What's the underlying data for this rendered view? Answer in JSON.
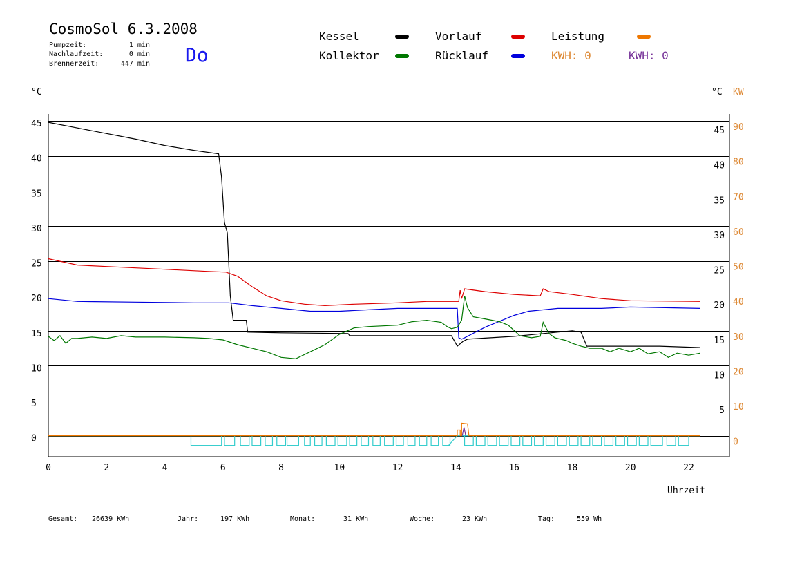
{
  "header": {
    "title": "CosmoSol 6.3.2008",
    "weekday": "Do",
    "stats": [
      {
        "label": "Pumpzeit:",
        "value": "1 min"
      },
      {
        "label": "Nachlaufzeit:",
        "value": "0 min"
      },
      {
        "label": "Brennerzeit:",
        "value": "447 min"
      }
    ]
  },
  "legend": {
    "kessel": {
      "label": "Kessel",
      "color": "#000000"
    },
    "vorlauf": {
      "label": "Vorlauf",
      "color": "#dd0000"
    },
    "leistung": {
      "label": "Leistung",
      "color": "#ee7700"
    },
    "kollektor": {
      "label": "Kollektor",
      "color": "#007700"
    },
    "ruecklauf": {
      "label": "Rücklauf",
      "color": "#0000dd"
    },
    "kwh_orange": "KWH: 0",
    "kwh_purple": "KWH: 0",
    "kwh_orange_color": "#dd8833",
    "kwh_purple_color": "#773399"
  },
  "footer": [
    {
      "label": "Gesamt:",
      "value": "26639 KWh"
    },
    {
      "label": "Jahr:",
      "value": "197 KWh"
    },
    {
      "label": "Monat:",
      "value": "31 KWh"
    },
    {
      "label": "Woche:",
      "value": "23 KWh"
    },
    {
      "label": "Tag:",
      "value": "559 Wh"
    }
  ],
  "chart_data": {
    "type": "line",
    "xlabel": "Uhrzeit",
    "ylabel_left": "°C",
    "ylabel_right": "°C",
    "ylabel_right2": "KW",
    "xlim": [
      0,
      23.4
    ],
    "ylim": [
      -3,
      46
    ],
    "x_ticks": [
      "0",
      "2",
      "4",
      "6",
      "8",
      "10",
      "12",
      "14",
      "16",
      "18",
      "20",
      "22"
    ],
    "y_ticks_left": [
      "0",
      "5",
      "10",
      "15",
      "20",
      "25",
      "30",
      "35",
      "40",
      "45"
    ],
    "y_ticks_right": [
      "5",
      "10",
      "15",
      "20",
      "25",
      "30",
      "35",
      "40",
      "45"
    ],
    "y_ticks_kw": [
      "0",
      "10",
      "20",
      "30",
      "40",
      "50",
      "60",
      "70",
      "80",
      "90"
    ],
    "grid": true,
    "series": [
      {
        "name": "Kessel",
        "color": "#000000",
        "points": [
          [
            0,
            44.8
          ],
          [
            1,
            44
          ],
          [
            2,
            43.2
          ],
          [
            3,
            42.4
          ],
          [
            4,
            41.5
          ],
          [
            5,
            40.8
          ],
          [
            5.85,
            40.3
          ],
          [
            5.95,
            37
          ],
          [
            6.05,
            30.5
          ],
          [
            6.15,
            29
          ],
          [
            6.25,
            20
          ],
          [
            6.35,
            16.5
          ],
          [
            6.8,
            16.5
          ],
          [
            6.85,
            14.8
          ],
          [
            8,
            14.7
          ],
          [
            10.3,
            14.6
          ],
          [
            10.35,
            14.3
          ],
          [
            12.5,
            14.3
          ],
          [
            13.5,
            14.3
          ],
          [
            13.85,
            14.3
          ],
          [
            14.05,
            12.8
          ],
          [
            14.25,
            13.5
          ],
          [
            14.4,
            13.8
          ],
          [
            16,
            14.2
          ],
          [
            17.5,
            14.8
          ],
          [
            18,
            15
          ],
          [
            18.3,
            14.8
          ],
          [
            18.5,
            12.8
          ],
          [
            20,
            12.8
          ],
          [
            21,
            12.8
          ],
          [
            22.4,
            12.6
          ]
        ]
      },
      {
        "name": "Vorlauf",
        "color": "#dd0000",
        "points": [
          [
            0,
            25.3
          ],
          [
            1,
            24.4
          ],
          [
            2,
            24.2
          ],
          [
            4,
            23.8
          ],
          [
            5.5,
            23.5
          ],
          [
            6.1,
            23.4
          ],
          [
            6.5,
            22.8
          ],
          [
            7,
            21.3
          ],
          [
            7.5,
            20
          ],
          [
            8,
            19.3
          ],
          [
            8.8,
            18.8
          ],
          [
            9.5,
            18.6
          ],
          [
            10.5,
            18.8
          ],
          [
            12,
            19
          ],
          [
            13,
            19.2
          ],
          [
            14.1,
            19.2
          ],
          [
            14.15,
            20.8
          ],
          [
            14.2,
            19.6
          ],
          [
            14.3,
            21
          ],
          [
            15,
            20.6
          ],
          [
            16,
            20.2
          ],
          [
            16.9,
            20
          ],
          [
            17,
            21
          ],
          [
            17.2,
            20.6
          ],
          [
            18,
            20.2
          ],
          [
            19,
            19.6
          ],
          [
            20,
            19.3
          ],
          [
            22.4,
            19.2
          ]
        ]
      },
      {
        "name": "Rücklauf",
        "color": "#0000dd",
        "points": [
          [
            0,
            19.6
          ],
          [
            1,
            19.2
          ],
          [
            3,
            19.1
          ],
          [
            5,
            19
          ],
          [
            6.2,
            19
          ],
          [
            7,
            18.6
          ],
          [
            8,
            18.2
          ],
          [
            9,
            17.8
          ],
          [
            10,
            17.8
          ],
          [
            11,
            18
          ],
          [
            12,
            18.2
          ],
          [
            14.05,
            18.2
          ],
          [
            14.1,
            14
          ],
          [
            14.2,
            13.8
          ],
          [
            14.3,
            14
          ],
          [
            15,
            15.5
          ],
          [
            16,
            17.2
          ],
          [
            16.5,
            17.8
          ],
          [
            17.5,
            18.2
          ],
          [
            19,
            18.2
          ],
          [
            20,
            18.4
          ],
          [
            22.4,
            18.2
          ]
        ]
      },
      {
        "name": "Kollektor",
        "color": "#007700",
        "points": [
          [
            0,
            14.2
          ],
          [
            0.2,
            13.6
          ],
          [
            0.4,
            14.3
          ],
          [
            0.6,
            13.2
          ],
          [
            0.8,
            13.9
          ],
          [
            1,
            13.9
          ],
          [
            1.5,
            14.1
          ],
          [
            2,
            13.9
          ],
          [
            2.5,
            14.3
          ],
          [
            3,
            14.1
          ],
          [
            4,
            14.1
          ],
          [
            5,
            14
          ],
          [
            5.5,
            13.9
          ],
          [
            6,
            13.7
          ],
          [
            6.5,
            13
          ],
          [
            7,
            12.5
          ],
          [
            7.5,
            12
          ],
          [
            8,
            11.2
          ],
          [
            8.5,
            11
          ],
          [
            9,
            12
          ],
          [
            9.5,
            13
          ],
          [
            10,
            14.5
          ],
          [
            10.5,
            15.4
          ],
          [
            11,
            15.6
          ],
          [
            12,
            15.8
          ],
          [
            12.5,
            16.3
          ],
          [
            13,
            16.5
          ],
          [
            13.5,
            16.2
          ],
          [
            13.7,
            15.6
          ],
          [
            13.85,
            15.3
          ],
          [
            14.05,
            15.5
          ],
          [
            14.2,
            16.5
          ],
          [
            14.3,
            20
          ],
          [
            14.4,
            18.3
          ],
          [
            14.6,
            17
          ],
          [
            15,
            16.7
          ],
          [
            15.5,
            16.3
          ],
          [
            15.8,
            15.8
          ],
          [
            16.2,
            14.3
          ],
          [
            16.6,
            14
          ],
          [
            16.9,
            14.2
          ],
          [
            17,
            16.2
          ],
          [
            17.2,
            14.6
          ],
          [
            17.4,
            14
          ],
          [
            17.8,
            13.6
          ],
          [
            18,
            13.2
          ],
          [
            18.3,
            12.8
          ],
          [
            18.6,
            12.5
          ],
          [
            19,
            12.5
          ],
          [
            19.3,
            12
          ],
          [
            19.6,
            12.5
          ],
          [
            20,
            12
          ],
          [
            20.3,
            12.5
          ],
          [
            20.6,
            11.7
          ],
          [
            21,
            12
          ],
          [
            21.3,
            11.2
          ],
          [
            21.6,
            11.8
          ],
          [
            22,
            11.5
          ],
          [
            22.4,
            11.8
          ]
        ]
      }
    ],
    "power_series": [
      {
        "name": "Leistung",
        "color": "#ee7700",
        "points": [
          [
            0,
            0
          ],
          [
            14.05,
            0
          ],
          [
            14.05,
            0.8
          ],
          [
            14.15,
            0.8
          ],
          [
            14.15,
            0
          ],
          [
            14.2,
            0
          ],
          [
            14.2,
            1.8
          ],
          [
            14.4,
            1.7
          ],
          [
            14.45,
            0
          ],
          [
            22.4,
            0
          ]
        ]
      }
    ]
  }
}
